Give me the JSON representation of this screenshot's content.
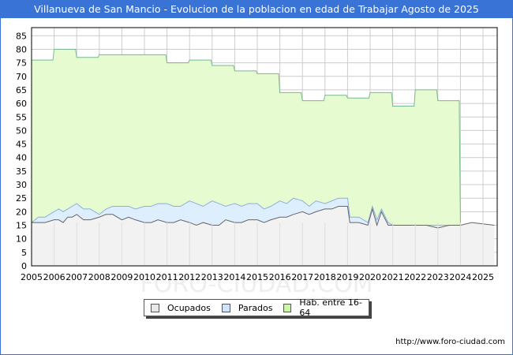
{
  "title": "Villanueva de San Mancio - Evolucion de la poblacion en edad de Trabajar Agosto de 2025",
  "footer_url": "http://www.foro-ciudad.com",
  "watermark": "FORO-CIUDAD.COM",
  "colors": {
    "title_bg": "#3a73d6",
    "ocupados_fill": "#f2f2f2",
    "ocupados_line": "#666666",
    "parados_fill": "#ddeeff",
    "parados_line": "#8ab0e0",
    "hab_fill": "#e6fbcf",
    "hab_line": "#78b890",
    "grid": "#cccccc"
  },
  "legend": [
    {
      "label": "Ocupados",
      "color": "#e8e8e8"
    },
    {
      "label": "Parados",
      "color": "#cfe5ff"
    },
    {
      "label": "Hab. entre 16-64",
      "color": "#ccf5a8"
    }
  ],
  "chart_data": {
    "type": "area",
    "title": "Villanueva de San Mancio - Evolucion de la poblacion en edad de Trabajar Agosto de 2025",
    "xlabel": "",
    "ylabel": "",
    "x_ticks": [
      "2005",
      "2006",
      "2007",
      "2008",
      "2009",
      "2010",
      "2011",
      "2012",
      "2013",
      "2014",
      "2015",
      "2016",
      "2017",
      "2018",
      "2019",
      "2020",
      "2021",
      "2022",
      "2023",
      "2024",
      "2025"
    ],
    "y_ticks": [
      0,
      5,
      10,
      15,
      20,
      25,
      30,
      35,
      40,
      45,
      50,
      55,
      60,
      65,
      70,
      75,
      80,
      85
    ],
    "ylim": [
      0,
      88
    ],
    "xlim": [
      2005,
      2025.6
    ],
    "grid": true,
    "legend_position": "bottom",
    "series": [
      {
        "name": "Hab. entre 16-64",
        "x": [
          2005,
          2006,
          2007,
          2008,
          2009,
          2010,
          2011,
          2012,
          2013,
          2014,
          2015,
          2016,
          2017,
          2018,
          2019,
          2020,
          2021,
          2022,
          2023,
          2024
        ],
        "values": [
          76,
          80,
          77,
          78,
          78,
          78,
          75,
          76,
          74,
          72,
          71,
          64,
          61,
          63,
          62,
          64,
          59,
          65,
          61,
          15
        ]
      },
      {
        "name": "Parados",
        "x": [
          2005,
          2005.3,
          2005.6,
          2006,
          2006.2,
          2006.4,
          2006.6,
          2006.8,
          2007,
          2007.3,
          2007.6,
          2008,
          2008.3,
          2008.6,
          2009,
          2009.3,
          2009.6,
          2010,
          2010.3,
          2010.6,
          2011,
          2011.3,
          2011.6,
          2012,
          2012.3,
          2012.6,
          2013,
          2013.3,
          2013.6,
          2014,
          2014.3,
          2014.6,
          2015,
          2015.3,
          2015.6,
          2016,
          2016.3,
          2016.6,
          2017,
          2017.3,
          2017.6,
          2018,
          2018.3,
          2018.6,
          2019,
          2019.1,
          2019.5,
          2019.9,
          2020.1,
          2020.3,
          2020.5,
          2020.8,
          2021,
          2021.5,
          2022,
          2022.5,
          2023,
          2023.5,
          2024,
          2024.5,
          2025.5
        ],
        "values": [
          16,
          18,
          18,
          20,
          21,
          20,
          21,
          22,
          23,
          21,
          21,
          19,
          21,
          22,
          22,
          22,
          21,
          22,
          22,
          23,
          23,
          22,
          22,
          24,
          23,
          22,
          24,
          23,
          22,
          23,
          22,
          23,
          23,
          21,
          22,
          24,
          23,
          25,
          24,
          22,
          24,
          23,
          24,
          25,
          25,
          18,
          18,
          16,
          22,
          17,
          21,
          16,
          15,
          15,
          15,
          15,
          15,
          15,
          15,
          15,
          15
        ]
      },
      {
        "name": "Ocupados",
        "x": [
          2005,
          2005.3,
          2005.6,
          2006,
          2006.2,
          2006.4,
          2006.6,
          2006.8,
          2007,
          2007.3,
          2007.6,
          2008,
          2008.3,
          2008.6,
          2009,
          2009.3,
          2009.6,
          2010,
          2010.3,
          2010.6,
          2011,
          2011.3,
          2011.6,
          2012,
          2012.3,
          2012.6,
          2013,
          2013.3,
          2013.6,
          2014,
          2014.3,
          2014.6,
          2015,
          2015.3,
          2015.6,
          2016,
          2016.3,
          2016.6,
          2017,
          2017.3,
          2017.6,
          2018,
          2018.3,
          2018.6,
          2019,
          2019.1,
          2019.5,
          2019.9,
          2020.1,
          2020.3,
          2020.5,
          2020.8,
          2021,
          2021.5,
          2022,
          2022.5,
          2023,
          2023.5,
          2024,
          2024.5,
          2025.5
        ],
        "values": [
          16,
          16,
          16,
          17,
          17,
          16,
          18,
          18,
          19,
          17,
          17,
          18,
          19,
          19,
          17,
          18,
          17,
          16,
          16,
          17,
          16,
          16,
          17,
          16,
          15,
          16,
          15,
          15,
          17,
          16,
          16,
          17,
          17,
          16,
          17,
          18,
          18,
          19,
          20,
          19,
          20,
          21,
          21,
          22,
          22,
          16,
          16,
          15,
          21,
          15,
          20,
          15,
          15,
          15,
          15,
          15,
          14,
          15,
          15,
          16,
          15
        ]
      }
    ]
  }
}
